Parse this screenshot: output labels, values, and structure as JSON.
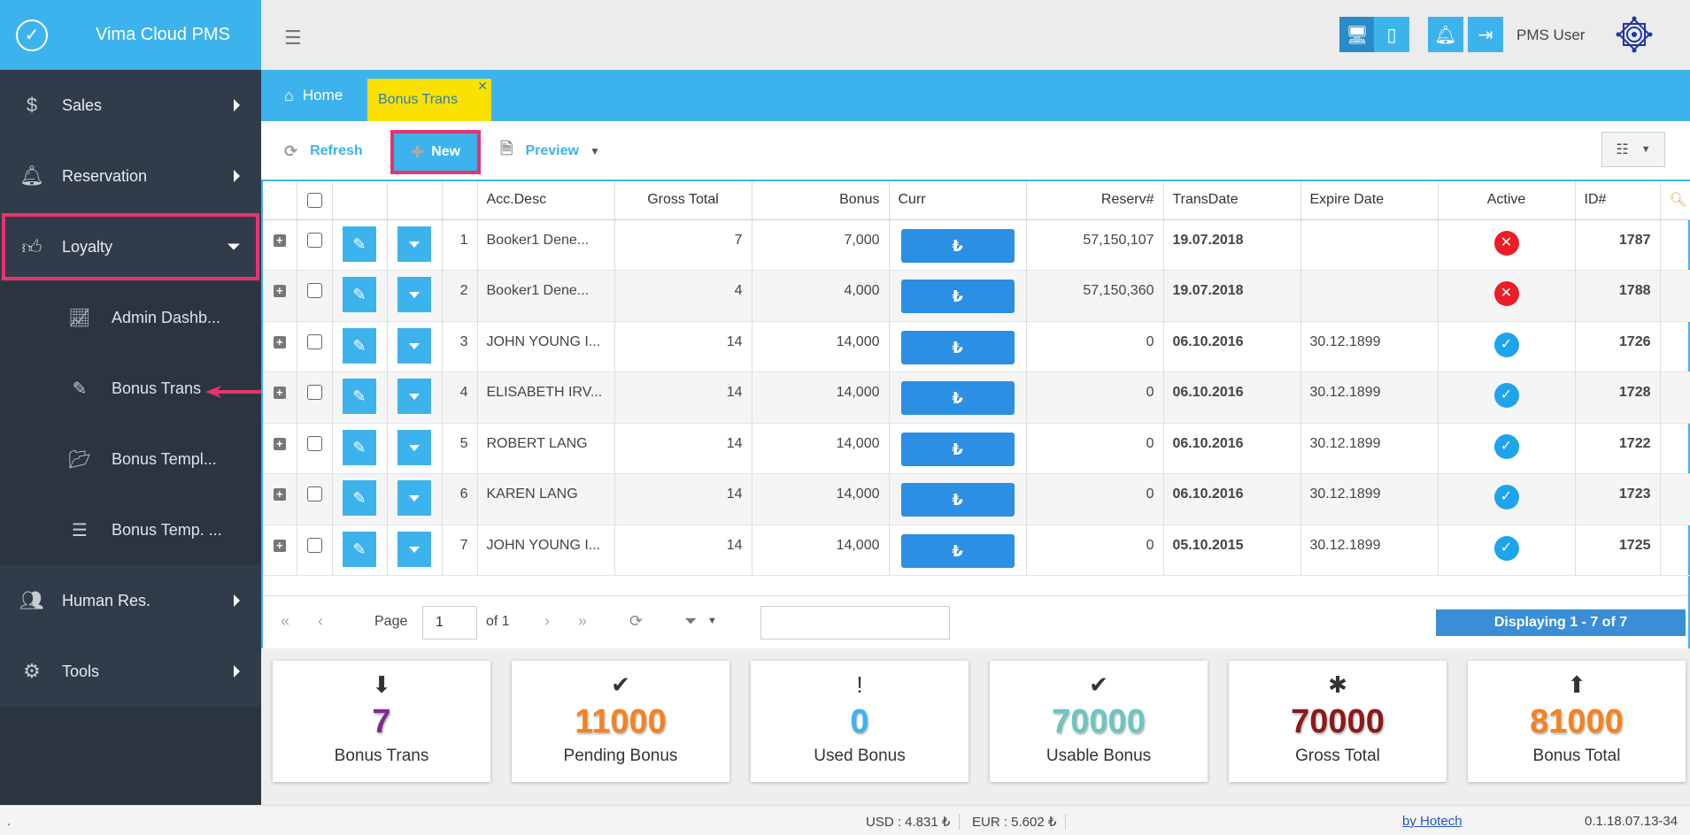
{
  "brand": {
    "title": "Vima Cloud PMS"
  },
  "sidebar": {
    "items": [
      {
        "label": "Sales"
      },
      {
        "label": "Reservation"
      },
      {
        "label": "Loyalty"
      },
      {
        "label": "Human Res."
      },
      {
        "label": "Tools"
      }
    ],
    "sub_items": [
      {
        "label": "Admin Dashb..."
      },
      {
        "label": "Bonus Trans"
      },
      {
        "label": "Bonus Templ..."
      },
      {
        "label": "Bonus Temp. ..."
      }
    ]
  },
  "header": {
    "user": "PMS User"
  },
  "tabs": {
    "home": "Home",
    "active": "Bonus Trans"
  },
  "toolbar": {
    "refresh": "Refresh",
    "new": "New",
    "preview": "Preview"
  },
  "grid": {
    "columns": [
      "Acc.Desc",
      "Gross Total",
      "Bonus",
      "Curr",
      "Reserv#",
      "TransDate",
      "Expire Date",
      "Active",
      "ID#"
    ],
    "currency_symbol": "₺",
    "rows": [
      {
        "n": "1",
        "desc": "Booker1 Dene...",
        "gross": "7",
        "bonus": "7,000",
        "reserv": "57,150,107",
        "trans": "19.07.2018",
        "expire": "",
        "active": false,
        "id": "1787"
      },
      {
        "n": "2",
        "desc": "Booker1 Dene...",
        "gross": "4",
        "bonus": "4,000",
        "reserv": "57,150,360",
        "trans": "19.07.2018",
        "expire": "",
        "active": false,
        "id": "1788"
      },
      {
        "n": "3",
        "desc": "JOHN YOUNG I...",
        "gross": "14",
        "bonus": "14,000",
        "reserv": "0",
        "trans": "06.10.2016",
        "expire": "30.12.1899",
        "active": true,
        "id": "1726"
      },
      {
        "n": "4",
        "desc": "ELISABETH IRV...",
        "gross": "14",
        "bonus": "14,000",
        "reserv": "0",
        "trans": "06.10.2016",
        "expire": "30.12.1899",
        "active": true,
        "id": "1728"
      },
      {
        "n": "5",
        "desc": "ROBERT LANG",
        "gross": "14",
        "bonus": "14,000",
        "reserv": "0",
        "trans": "06.10.2016",
        "expire": "30.12.1899",
        "active": true,
        "id": "1722"
      },
      {
        "n": "6",
        "desc": "KAREN LANG",
        "gross": "14",
        "bonus": "14,000",
        "reserv": "0",
        "trans": "06.10.2016",
        "expire": "30.12.1899",
        "active": true,
        "id": "1723"
      },
      {
        "n": "7",
        "desc": "JOHN YOUNG I...",
        "gross": "14",
        "bonus": "14,000",
        "reserv": "0",
        "trans": "05.10.2015",
        "expire": "30.12.1899",
        "active": true,
        "id": "1725"
      }
    ]
  },
  "pager": {
    "page_label": "Page",
    "page_value": "1",
    "of_label": "of 1",
    "display": "Displaying 1 - 7 of 7"
  },
  "cards": [
    {
      "value": "7",
      "label": "Bonus Trans",
      "color": "#7b2d8e",
      "icon": "arrow-down-circle-icon"
    },
    {
      "value": "11000",
      "label": "Pending Bonus",
      "color": "#f58220",
      "icon": "check-icon"
    },
    {
      "value": "0",
      "label": "Used Bonus",
      "color": "#3db3ee",
      "icon": "exclamation-icon"
    },
    {
      "value": "70000",
      "label": "Usable Bonus",
      "color": "#6cc5c0",
      "icon": "check-icon"
    },
    {
      "value": "70000",
      "label": "Gross Total",
      "color": "#8b1a1a",
      "icon": "asterisk-icon"
    },
    {
      "value": "81000",
      "label": "Bonus Total",
      "color": "#f58220",
      "icon": "arrow-up-circle-icon"
    }
  ],
  "statusbar": {
    "left": ".",
    "usd": "USD : 4.831 ₺",
    "eur": "EUR : 5.602 ₺",
    "by": "by Hotech",
    "version": "0.1.18.07.13-34"
  }
}
